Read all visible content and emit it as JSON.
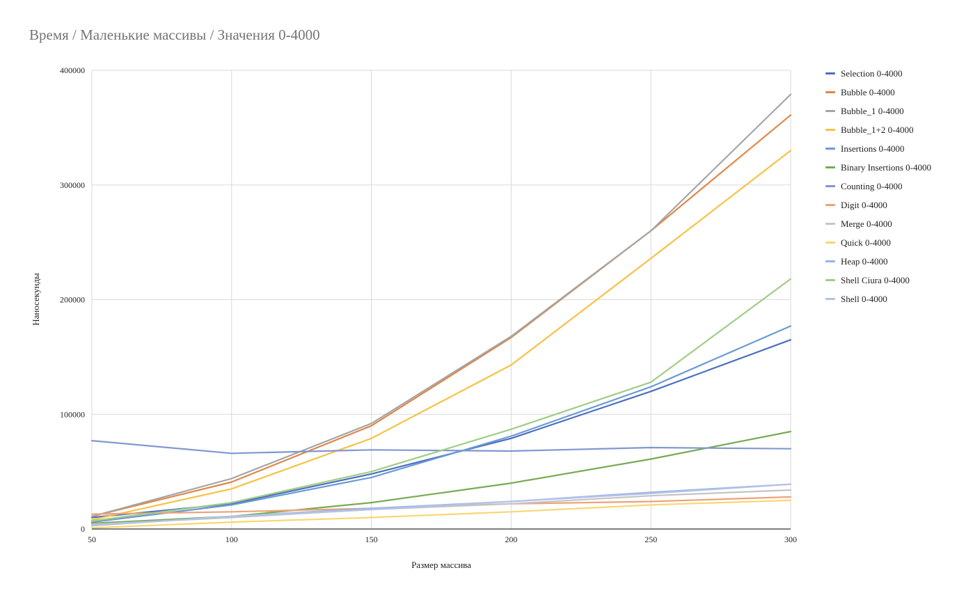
{
  "chart_data": {
    "type": "line",
    "title": "Время / Маленькие массивы / Значения 0-4000",
    "xlabel": "Размер массива",
    "ylabel": "Наносекунды",
    "x": [
      50,
      100,
      150,
      200,
      250,
      300
    ],
    "xlim": [
      50,
      300
    ],
    "ylim": [
      0,
      400000
    ],
    "yticks": [
      0,
      100000,
      200000,
      300000,
      400000
    ],
    "grid": true,
    "legend_position": "right",
    "series": [
      {
        "name": "Selection 0-4000",
        "color": "#4a6fc2",
        "values": [
          10000,
          22000,
          48000,
          79000,
          120000,
          165000
        ]
      },
      {
        "name": "Bubble 0-4000",
        "color": "#e08748",
        "values": [
          11000,
          41000,
          90000,
          167000,
          260000,
          361000
        ]
      },
      {
        "name": "Bubble_1 0-4000",
        "color": "#a5a5a5",
        "values": [
          11000,
          44000,
          92000,
          168000,
          260000,
          379000
        ]
      },
      {
        "name": "Bubble_1+2 0-4000",
        "color": "#f6c244",
        "values": [
          8000,
          35000,
          79000,
          143000,
          236000,
          330000
        ]
      },
      {
        "name": "Insertions 0-4000",
        "color": "#6b9ad4",
        "values": [
          6000,
          21000,
          45000,
          81000,
          124000,
          177000
        ]
      },
      {
        "name": "Binary Insertions 0-4000",
        "color": "#77ab53",
        "values": [
          5000,
          11000,
          23000,
          40000,
          61000,
          85000
        ]
      },
      {
        "name": "Counting 0-4000",
        "color": "#7f97d2",
        "values": [
          77000,
          66000,
          69000,
          68000,
          71000,
          70000
        ]
      },
      {
        "name": "Digit 0-4000",
        "color": "#eda27a",
        "values": [
          13000,
          15000,
          18000,
          22000,
          24000,
          28000
        ]
      },
      {
        "name": "Merge 0-4000",
        "color": "#c4c4c4",
        "values": [
          4000,
          10000,
          17000,
          22000,
          29000,
          34000
        ]
      },
      {
        "name": "Quick 0-4000",
        "color": "#f9d670",
        "values": [
          1000,
          6000,
          10000,
          15000,
          21000,
          25000
        ]
      },
      {
        "name": "Heap 0-4000",
        "color": "#96b6e4",
        "values": [
          3000,
          11000,
          18000,
          24000,
          32000,
          39000
        ]
      },
      {
        "name": "Shell Ciura 0-4000",
        "color": "#a1cc84",
        "values": [
          7000,
          23000,
          50000,
          87000,
          128000,
          218000
        ]
      },
      {
        "name": "Shell 0-4000",
        "color": "#b4c2e8",
        "values": [
          3000,
          11000,
          17000,
          24000,
          31000,
          39000
        ]
      }
    ]
  }
}
